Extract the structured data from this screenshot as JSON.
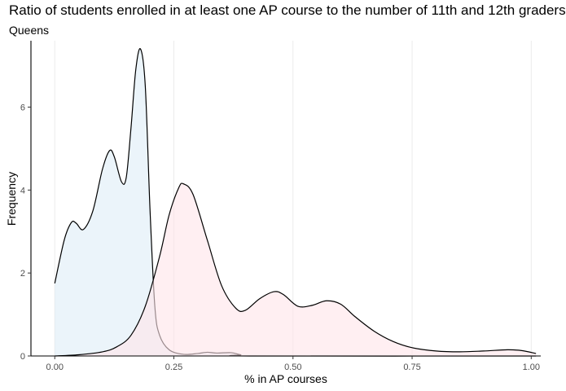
{
  "chart_data": {
    "type": "area",
    "title": "Ratio of students enrolled in at least one AP course to the number of 11th and 12th graders",
    "subtitle": "Queens",
    "xlabel": "% in AP courses",
    "ylabel": "Frequency",
    "xlim": [
      -0.05,
      1.02
    ],
    "ylim": [
      0,
      7.6
    ],
    "x_ticks": [
      0.0,
      0.25,
      0.5,
      0.75,
      1.0
    ],
    "x_tick_labels": [
      "0.00",
      "0.25",
      "0.50",
      "0.75",
      "1.00"
    ],
    "y_ticks": [
      0,
      2,
      4,
      6
    ],
    "y_tick_labels": [
      "0",
      "2",
      "4",
      "6"
    ],
    "grid": "vertical-major",
    "legend": "none",
    "series": [
      {
        "fill": "#deedf7",
        "fill_opacity": 0.6,
        "points": [
          [
            0.0,
            1.75
          ],
          [
            0.02,
            2.8
          ],
          [
            0.035,
            3.22
          ],
          [
            0.045,
            3.2
          ],
          [
            0.06,
            3.05
          ],
          [
            0.08,
            3.5
          ],
          [
            0.1,
            4.5
          ],
          [
            0.115,
            4.95
          ],
          [
            0.125,
            4.8
          ],
          [
            0.14,
            4.2
          ],
          [
            0.15,
            4.3
          ],
          [
            0.16,
            5.5
          ],
          [
            0.17,
            6.9
          ],
          [
            0.18,
            7.4
          ],
          [
            0.19,
            6.5
          ],
          [
            0.2,
            3.5
          ],
          [
            0.21,
            1.2
          ],
          [
            0.22,
            0.5
          ],
          [
            0.24,
            0.15
          ],
          [
            0.27,
            0.04
          ],
          [
            0.3,
            0.06
          ],
          [
            0.32,
            0.09
          ],
          [
            0.34,
            0.07
          ],
          [
            0.37,
            0.08
          ],
          [
            0.39,
            0.03
          ],
          [
            0.42,
            0.0
          ],
          [
            1.01,
            0.0
          ]
        ]
      },
      {
        "fill": "#ffe4ea",
        "fill_opacity": 0.6,
        "points": [
          [
            0.0,
            0.0
          ],
          [
            0.05,
            0.03
          ],
          [
            0.1,
            0.1
          ],
          [
            0.13,
            0.22
          ],
          [
            0.16,
            0.5
          ],
          [
            0.19,
            1.2
          ],
          [
            0.22,
            2.4
          ],
          [
            0.24,
            3.4
          ],
          [
            0.26,
            4.05
          ],
          [
            0.27,
            4.15
          ],
          [
            0.29,
            3.9
          ],
          [
            0.32,
            2.8
          ],
          [
            0.35,
            1.7
          ],
          [
            0.38,
            1.15
          ],
          [
            0.4,
            1.1
          ],
          [
            0.43,
            1.38
          ],
          [
            0.46,
            1.55
          ],
          [
            0.48,
            1.48
          ],
          [
            0.51,
            1.2
          ],
          [
            0.54,
            1.22
          ],
          [
            0.57,
            1.33
          ],
          [
            0.6,
            1.25
          ],
          [
            0.63,
            0.95
          ],
          [
            0.67,
            0.6
          ],
          [
            0.71,
            0.35
          ],
          [
            0.75,
            0.2
          ],
          [
            0.8,
            0.12
          ],
          [
            0.85,
            0.1
          ],
          [
            0.9,
            0.12
          ],
          [
            0.95,
            0.15
          ],
          [
            0.98,
            0.13
          ],
          [
            1.01,
            0.06
          ]
        ]
      }
    ]
  }
}
